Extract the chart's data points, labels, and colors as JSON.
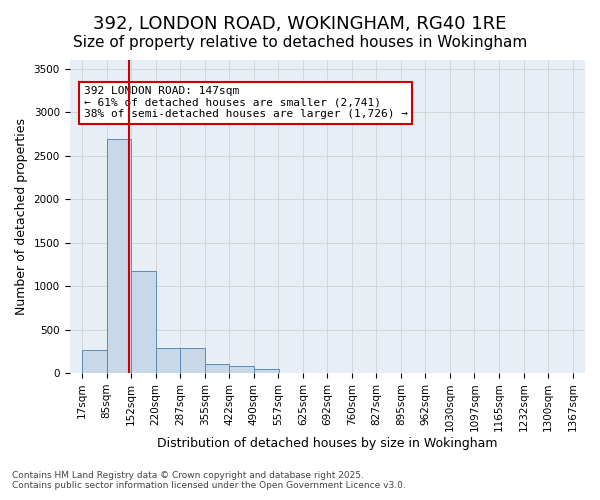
{
  "title_line1": "392, LONDON ROAD, WOKINGHAM, RG40 1RE",
  "title_line2": "Size of property relative to detached houses in Wokingham",
  "xlabel": "Distribution of detached houses by size in Wokingham",
  "ylabel": "Number of detached properties",
  "bin_labels": [
    "17sqm",
    "85sqm",
    "152sqm",
    "220sqm",
    "287sqm",
    "355sqm",
    "422sqm",
    "490sqm",
    "557sqm",
    "625sqm",
    "692sqm",
    "760sqm",
    "827sqm",
    "895sqm",
    "962sqm",
    "1030sqm",
    "1097sqm",
    "1165sqm",
    "1232sqm",
    "1300sqm",
    "1367sqm"
  ],
  "bin_edges": [
    17,
    85,
    152,
    220,
    287,
    355,
    422,
    490,
    557,
    625,
    692,
    760,
    827,
    895,
    962,
    1030,
    1097,
    1165,
    1232,
    1300,
    1367
  ],
  "bar_heights": [
    260,
    2690,
    1170,
    290,
    285,
    100,
    75,
    40,
    5,
    2,
    1,
    0,
    0,
    0,
    0,
    0,
    0,
    0,
    0,
    0
  ],
  "bar_color": "#c8d8e8",
  "bar_edge_color": "#5a8ab5",
  "vline_x": 147,
  "vline_color": "#cc0000",
  "annotation_text": "392 LONDON ROAD: 147sqm\n← 61% of detached houses are smaller (2,741)\n38% of semi-detached houses are larger (1,726) →",
  "annotation_box_color": "#cc0000",
  "annotation_bg": "#ffffff",
  "ylim": [
    0,
    3600
  ],
  "yticks": [
    0,
    500,
    1000,
    1500,
    2000,
    2500,
    3000,
    3500
  ],
  "grid_color": "#cccccc",
  "bg_color": "#e8eef5",
  "footer_line1": "Contains HM Land Registry data © Crown copyright and database right 2025.",
  "footer_line2": "Contains public sector information licensed under the Open Government Licence v3.0.",
  "title_fontsize": 13,
  "subtitle_fontsize": 11,
  "axis_label_fontsize": 9,
  "tick_fontsize": 7.5,
  "annotation_fontsize": 8
}
